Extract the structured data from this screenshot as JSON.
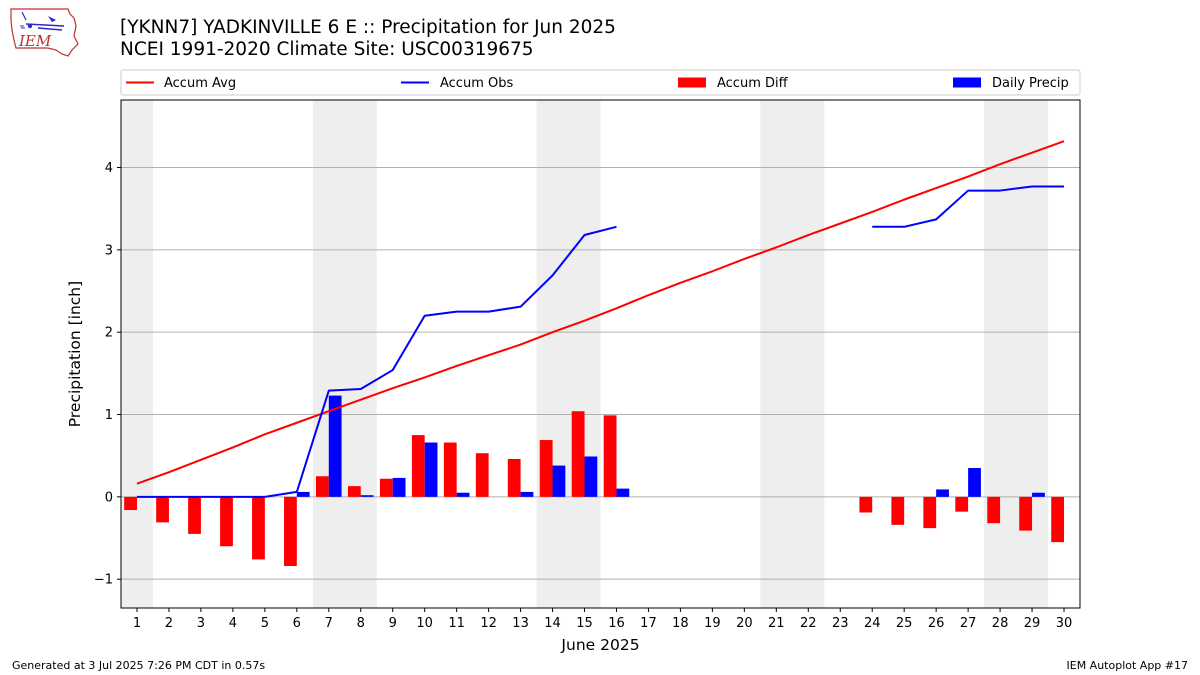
{
  "header": {
    "title_line1": "[YKNN7] YADKINVILLE 6 E :: Precipitation for Jun 2025",
    "title_line2": "NCEI 1991-2020 Climate Site: USC00319675",
    "logo_text": "IEM"
  },
  "footer": {
    "generated": "Generated at 3 Jul 2025 7:26 PM CDT in 0.57s",
    "app": "IEM Autoplot App #17"
  },
  "chart_data": {
    "type": "bar",
    "title": "[YKNN7] YADKINVILLE 6 E :: Precipitation for Jun 2025",
    "xlabel": "June 2025",
    "ylabel": "Precipitation [inch]",
    "xlim": [
      0.5,
      30.5
    ],
    "ylim": [
      -1.35,
      4.82
    ],
    "yticks": [
      -1,
      0,
      1,
      2,
      3,
      4
    ],
    "ytick_labels": [
      "−1",
      "0",
      "1",
      "2",
      "3",
      "4"
    ],
    "grid": "horizontal",
    "legend_position": "top",
    "colors": {
      "avg": "#ff0000",
      "obs": "#0000ff",
      "diff": "#ff0000",
      "daily": "#0000ff",
      "weekend_shade": "#eeeeee"
    },
    "categories": [
      "1",
      "2",
      "3",
      "4",
      "5",
      "6",
      "7",
      "8",
      "9",
      "10",
      "11",
      "12",
      "13",
      "14",
      "15",
      "16",
      "17",
      "18",
      "19",
      "20",
      "21",
      "22",
      "23",
      "24",
      "25",
      "26",
      "27",
      "28",
      "29",
      "30"
    ],
    "weekend_bands": [
      [
        0.5,
        1.5
      ],
      [
        6.5,
        8.5
      ],
      [
        13.5,
        15.5
      ],
      [
        20.5,
        22.5
      ],
      [
        27.5,
        29.5
      ]
    ],
    "series": [
      {
        "name": "Accum Avg",
        "kind": "line",
        "values": [
          0.16,
          0.3,
          0.45,
          0.6,
          0.76,
          0.9,
          1.04,
          1.18,
          1.32,
          1.45,
          1.59,
          1.72,
          1.85,
          2.0,
          2.14,
          2.29,
          2.45,
          2.6,
          2.74,
          2.89,
          3.03,
          3.18,
          3.32,
          3.46,
          3.61,
          3.75,
          3.89,
          4.04,
          4.18,
          4.32
        ]
      },
      {
        "name": "Accum Obs",
        "kind": "line",
        "values": [
          0.0,
          0.0,
          0.0,
          0.0,
          0.0,
          0.06,
          1.29,
          1.31,
          1.54,
          2.2,
          2.25,
          2.25,
          2.31,
          2.69,
          3.18,
          3.28,
          null,
          null,
          null,
          null,
          null,
          null,
          null,
          3.28,
          3.28,
          3.37,
          3.72,
          3.72,
          3.77,
          3.77
        ]
      },
      {
        "name": "Accum Diff",
        "kind": "bar",
        "values": [
          -0.16,
          -0.31,
          -0.45,
          -0.6,
          -0.76,
          -0.84,
          0.25,
          0.13,
          0.22,
          0.75,
          0.66,
          0.53,
          0.46,
          0.69,
          1.04,
          0.99,
          null,
          null,
          null,
          null,
          null,
          null,
          null,
          -0.19,
          -0.34,
          -0.38,
          -0.18,
          -0.32,
          -0.41,
          -0.55
        ]
      },
      {
        "name": "Daily Precip",
        "kind": "bar",
        "values": [
          0,
          0,
          0,
          0,
          0,
          0.06,
          1.23,
          0.02,
          0.23,
          0.66,
          0.05,
          0,
          0.06,
          0.38,
          0.49,
          0.1,
          null,
          null,
          null,
          null,
          null,
          null,
          null,
          0,
          0,
          0.09,
          0.35,
          0,
          0.05,
          0
        ]
      }
    ]
  }
}
